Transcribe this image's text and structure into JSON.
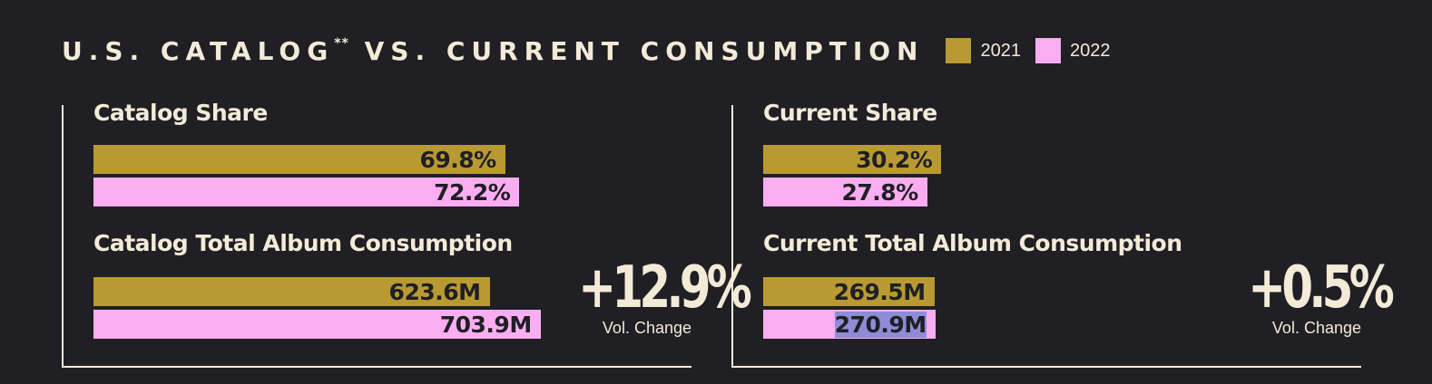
{
  "header": {
    "title": "U.S. CATALOG",
    "title_mark": "**",
    "title_rest": " VS. CURRENT CONSUMPTION"
  },
  "legend": [
    {
      "label": "2021",
      "color": "#b99a32"
    },
    {
      "label": "2022",
      "color": "#fbadf2"
    }
  ],
  "chart_data": [
    {
      "type": "bar",
      "title": "Catalog Share",
      "categories": [
        "2021",
        "2022"
      ],
      "values": [
        69.8,
        72.2
      ],
      "value_labels": [
        "69.8%",
        "72.2%"
      ],
      "unit": "%"
    },
    {
      "type": "bar",
      "title": "Catalog Total Album Consumption",
      "categories": [
        "2021",
        "2022"
      ],
      "values": [
        623.6,
        703.9
      ],
      "value_labels": [
        "623.6M",
        "703.9M"
      ],
      "unit": "M",
      "change": "+12.9%",
      "change_label": "Vol. Change"
    },
    {
      "type": "bar",
      "title": "Current Share",
      "categories": [
        "2021",
        "2022"
      ],
      "values": [
        30.2,
        27.8
      ],
      "value_labels": [
        "30.2%",
        "27.8%"
      ],
      "unit": "%"
    },
    {
      "type": "bar",
      "title": "Current Total Album Consumption",
      "categories": [
        "2021",
        "2022"
      ],
      "values": [
        269.5,
        270.9
      ],
      "value_labels": [
        "269.5M",
        "270.9M"
      ],
      "unit": "M",
      "change": "+0.5%",
      "change_label": "Vol. Change"
    }
  ],
  "colors": {
    "background": "#1f1f24",
    "text": "#f3ead8",
    "y2021": "#b99a32",
    "y2022": "#fbadf2",
    "label_highlight": "#8f8bd6"
  }
}
